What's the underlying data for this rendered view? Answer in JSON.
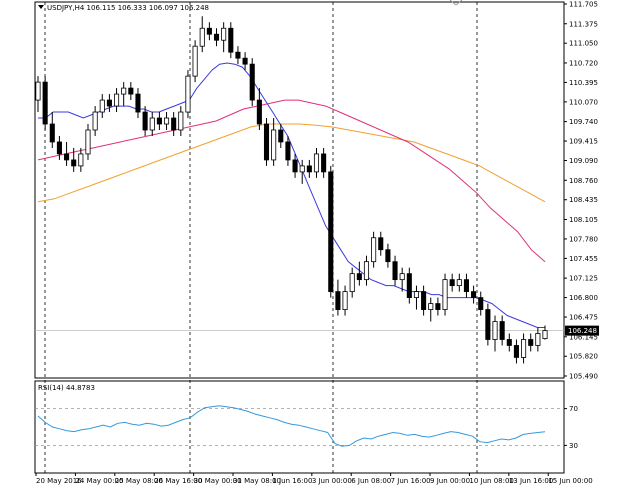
{
  "window": {
    "header": "USDJPY,H4  106.115 106.333 106.097 106.248",
    "header_arrow": "triangle-down-icon"
  },
  "price_axis": {
    "labels": [
      "111.705",
      "111.375",
      "111.050",
      "110.720",
      "110.395",
      "110.070",
      "109.740",
      "109.415",
      "109.090",
      "108.760",
      "108.435",
      "108.105",
      "107.780",
      "107.455",
      "107.125",
      "106.800",
      "106.475",
      "106.145",
      "105.820",
      "105.490"
    ],
    "current_price": "106.248",
    "range": [
      105.49,
      111.705
    ]
  },
  "rsi": {
    "label": "RSI(14) 44.8783",
    "levels": [
      "70",
      "30"
    ],
    "range": [
      0,
      100
    ]
  },
  "time_axis": {
    "labels": [
      "20 May 2016",
      "24 May 00:00",
      "25 May 08:00",
      "26 May 16:00",
      "30 May 00:00",
      "31 May 08:00",
      "1 Jun 16:00",
      "3 Jun 00:00",
      "6 Jun 08:00",
      "7 Jun 16:00",
      "9 Jun 00:00",
      "10 Jun 08:00",
      "13 Jun 16:00",
      "15 Jun 00:00"
    ]
  },
  "colors": {
    "ma_fast": "#3a3ae0",
    "ma_mid": "#e0307a",
    "ma_slow": "#f0a030",
    "rsi_line": "#3399dd",
    "bull": "#ffffff",
    "bear": "#000000"
  },
  "chart_data": {
    "type": "candlestick",
    "symbol": "USDJPY",
    "timeframe": "H4",
    "series": [
      {
        "name": "price",
        "values": [
          [
            110.1,
            110.5,
            109.9,
            110.4
          ],
          [
            110.4,
            110.5,
            109.6,
            109.7
          ],
          [
            109.7,
            109.9,
            109.3,
            109.4
          ],
          [
            109.4,
            109.5,
            109.1,
            109.2
          ],
          [
            109.2,
            109.4,
            109.0,
            109.1
          ],
          [
            109.1,
            109.3,
            108.9,
            109.0
          ],
          [
            109.0,
            109.3,
            108.9,
            109.2
          ],
          [
            109.2,
            109.7,
            109.1,
            109.6
          ],
          [
            109.6,
            110.0,
            109.5,
            109.9
          ],
          [
            109.9,
            110.2,
            109.8,
            110.1
          ],
          [
            110.1,
            110.2,
            109.9,
            110.0
          ],
          [
            110.0,
            110.3,
            109.9,
            110.2
          ],
          [
            110.2,
            110.4,
            110.0,
            110.3
          ],
          [
            110.3,
            110.4,
            110.1,
            110.2
          ],
          [
            110.2,
            110.3,
            109.8,
            109.9
          ],
          [
            109.9,
            110.0,
            109.5,
            109.6
          ],
          [
            109.6,
            109.9,
            109.5,
            109.8
          ],
          [
            109.8,
            109.9,
            109.6,
            109.7
          ],
          [
            109.7,
            109.9,
            109.6,
            109.8
          ],
          [
            109.8,
            109.9,
            109.5,
            109.6
          ],
          [
            109.6,
            110.0,
            109.5,
            109.9
          ],
          [
            109.9,
            110.6,
            109.8,
            110.5
          ],
          [
            110.5,
            111.1,
            110.4,
            111.0
          ],
          [
            111.0,
            111.5,
            110.9,
            111.3
          ],
          [
            111.3,
            111.4,
            111.1,
            111.2
          ],
          [
            111.2,
            111.3,
            111.0,
            111.1
          ],
          [
            111.1,
            111.4,
            110.9,
            111.3
          ],
          [
            111.3,
            111.4,
            110.8,
            110.9
          ],
          [
            110.9,
            111.0,
            110.7,
            110.8
          ],
          [
            110.8,
            110.9,
            110.6,
            110.7
          ],
          [
            110.7,
            110.8,
            110.0,
            110.1
          ],
          [
            110.1,
            110.3,
            109.6,
            109.7
          ],
          [
            109.7,
            109.8,
            109.0,
            109.1
          ],
          [
            109.1,
            109.8,
            109.0,
            109.6
          ],
          [
            109.6,
            109.7,
            109.3,
            109.4
          ],
          [
            109.4,
            109.5,
            109.0,
            109.1
          ],
          [
            109.1,
            109.2,
            108.8,
            108.9
          ],
          [
            108.9,
            109.1,
            108.7,
            109.0
          ],
          [
            109.0,
            109.1,
            108.8,
            108.9
          ],
          [
            108.9,
            109.3,
            108.8,
            109.2
          ],
          [
            109.2,
            109.3,
            108.8,
            108.9
          ],
          [
            108.9,
            109.0,
            106.8,
            106.9
          ],
          [
            106.9,
            107.1,
            106.5,
            106.6
          ],
          [
            106.6,
            107.0,
            106.5,
            106.9
          ],
          [
            106.9,
            107.3,
            106.8,
            107.2
          ],
          [
            107.2,
            107.4,
            107.0,
            107.1
          ],
          [
            107.1,
            107.5,
            107.0,
            107.4
          ],
          [
            107.4,
            107.9,
            107.3,
            107.8
          ],
          [
            107.8,
            107.9,
            107.5,
            107.6
          ],
          [
            107.6,
            107.7,
            107.3,
            107.4
          ],
          [
            107.4,
            107.5,
            107.0,
            107.1
          ],
          [
            107.1,
            107.3,
            106.9,
            107.2
          ],
          [
            107.2,
            107.3,
            106.7,
            106.8
          ],
          [
            106.8,
            107.0,
            106.6,
            106.9
          ],
          [
            106.9,
            107.0,
            106.5,
            106.6
          ],
          [
            106.6,
            106.8,
            106.4,
            106.7
          ],
          [
            106.7,
            106.8,
            106.5,
            106.6
          ],
          [
            106.6,
            107.2,
            106.5,
            107.1
          ],
          [
            107.1,
            107.2,
            106.9,
            107.0
          ],
          [
            107.0,
            107.2,
            106.9,
            107.1
          ],
          [
            107.1,
            107.2,
            106.8,
            106.9
          ],
          [
            106.9,
            107.0,
            106.7,
            106.8
          ],
          [
            106.8,
            106.9,
            106.5,
            106.6
          ],
          [
            106.6,
            106.7,
            106.0,
            106.1
          ],
          [
            106.1,
            106.5,
            105.9,
            106.4
          ],
          [
            106.4,
            106.5,
            106.0,
            106.1
          ],
          [
            106.1,
            106.2,
            105.9,
            106.0
          ],
          [
            106.0,
            106.1,
            105.7,
            105.8
          ],
          [
            105.8,
            106.2,
            105.7,
            106.1
          ],
          [
            106.1,
            106.2,
            105.9,
            106.0
          ],
          [
            106.0,
            106.3,
            105.9,
            106.2
          ],
          [
            106.115,
            106.333,
            106.097,
            106.248
          ]
        ]
      },
      {
        "name": "ma_fast",
        "values": [
          109.8,
          109.8,
          109.9,
          109.9,
          109.9,
          109.85,
          109.8,
          109.85,
          109.9,
          109.95,
          110.0,
          110.0,
          110.0,
          109.95,
          109.95,
          109.9,
          109.9,
          109.95,
          110.0,
          110.05,
          110.1,
          110.3,
          110.45,
          110.6,
          110.7,
          110.72,
          110.7,
          110.65,
          110.5,
          110.3,
          110.1,
          109.9,
          109.7,
          109.5,
          109.2,
          108.9,
          108.6,
          108.3,
          108.0,
          107.8,
          107.6,
          107.4,
          107.3,
          107.2,
          107.1,
          107.05,
          107.0,
          107.0,
          106.95,
          106.9,
          106.9,
          106.9,
          106.85,
          106.85,
          106.8,
          106.8,
          106.8,
          106.8,
          106.8,
          106.75,
          106.7,
          106.6,
          106.5,
          106.45,
          106.4,
          106.35,
          106.3,
          106.3
        ]
      },
      {
        "name": "ma_mid",
        "values": [
          109.1,
          109.15,
          109.2,
          109.25,
          109.3,
          109.35,
          109.4,
          109.45,
          109.5,
          109.55,
          109.6,
          109.65,
          109.7,
          109.75,
          109.85,
          109.95,
          110.0,
          110.05,
          110.1,
          110.1,
          110.05,
          110.0,
          109.9,
          109.8,
          109.7,
          109.6,
          109.5,
          109.4,
          109.25,
          109.1,
          108.95,
          108.75,
          108.55,
          108.3,
          108.1,
          107.9,
          107.6,
          107.4
        ]
      },
      {
        "name": "ma_slow",
        "values": [
          108.4,
          108.45,
          108.55,
          108.65,
          108.75,
          108.85,
          108.95,
          109.05,
          109.15,
          109.25,
          109.35,
          109.45,
          109.55,
          109.65,
          109.7,
          109.7,
          109.7,
          109.68,
          109.65,
          109.6,
          109.55,
          109.5,
          109.45,
          109.4,
          109.3,
          109.2,
          109.1,
          109.0,
          108.85,
          108.7,
          108.55,
          108.4
        ]
      },
      {
        "name": "rsi",
        "values": [
          62,
          55,
          50,
          48,
          46,
          45,
          47,
          48,
          50,
          52,
          50,
          54,
          55,
          53,
          52,
          54,
          53,
          51,
          52,
          55,
          58,
          60,
          66,
          71,
          72,
          73,
          72,
          71,
          69,
          67,
          64,
          62,
          60,
          58,
          55,
          53,
          52,
          50,
          48,
          46,
          44,
          32,
          29,
          30,
          35,
          38,
          37,
          40,
          42,
          44,
          43,
          41,
          42,
          40,
          39,
          41,
          43,
          45,
          44,
          42,
          40,
          34,
          33,
          35,
          37,
          36,
          38,
          42,
          43,
          44,
          44.8783
        ]
      }
    ]
  }
}
